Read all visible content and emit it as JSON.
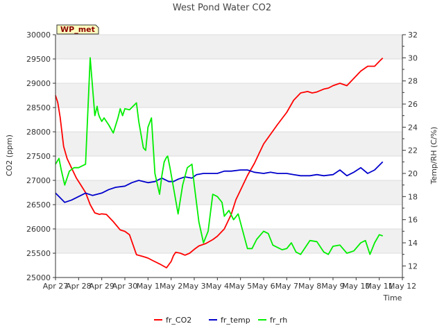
{
  "chart_data": {
    "type": "line",
    "title": "West Pond Water CO2",
    "tag": "WP_met",
    "xlabel": "Time",
    "ylabel": "CO2 (ppm)",
    "y2label": "Temp/RH (C/%)",
    "x_ticks": [
      "Apr 27",
      "Apr 28",
      "Apr 29",
      "Apr 30",
      "May 1",
      "May 2",
      "May 3",
      "May 4",
      "May 5",
      "May 6",
      "May 7",
      "May 8",
      "May 9",
      "May 10",
      "May 11",
      "May 12"
    ],
    "xlim": [
      0,
      15
    ],
    "ylim": [
      25000,
      30000
    ],
    "y_ticks": [
      "25000",
      "25500",
      "26000",
      "26500",
      "27000",
      "27500",
      "28000",
      "28500",
      "29000",
      "29500",
      "30000"
    ],
    "y2lim": [
      11,
      32
    ],
    "y2_ticks": [
      "12",
      "14",
      "16",
      "18",
      "20",
      "22",
      "24",
      "26",
      "28",
      "30",
      "32"
    ],
    "series": [
      {
        "name": "fr_CO2",
        "color": "#ff0000",
        "axis": "left",
        "x": [
          0.0,
          0.1,
          0.2,
          0.35,
          0.5,
          0.7,
          0.9,
          1.1,
          1.3,
          1.5,
          1.7,
          1.9,
          2.0,
          2.2,
          2.5,
          2.8,
          3.0,
          3.2,
          3.5,
          3.8,
          4.0,
          4.2,
          4.5,
          4.8,
          5.0,
          5.1,
          5.2,
          5.4,
          5.6,
          5.8,
          6.0,
          6.2,
          6.5,
          6.8,
          7.0,
          7.3,
          7.6,
          7.8,
          8.0,
          8.3,
          8.6,
          8.8,
          9.0,
          9.3,
          9.6,
          10.0,
          10.3,
          10.6,
          10.9,
          11.1,
          11.3,
          11.6,
          11.8,
          12.0,
          12.3,
          12.6,
          12.9,
          13.2,
          13.5,
          13.8,
          14.0,
          14.15
        ],
        "values": [
          28750,
          28600,
          28300,
          27700,
          27450,
          27250,
          27050,
          26900,
          26750,
          26500,
          26330,
          26300,
          26310,
          26300,
          26150,
          25980,
          25950,
          25880,
          25470,
          25430,
          25400,
          25350,
          25280,
          25200,
          25330,
          25450,
          25520,
          25500,
          25460,
          25500,
          25580,
          25650,
          25700,
          25780,
          25850,
          26000,
          26300,
          26600,
          26800,
          27100,
          27350,
          27550,
          27750,
          27950,
          28150,
          28400,
          28650,
          28800,
          28830,
          28800,
          28820,
          28880,
          28900,
          28950,
          29000,
          28950,
          29100,
          29250,
          29350,
          29350,
          29450,
          29520
        ]
      },
      {
        "name": "fr_temp",
        "color": "#0000cc",
        "axis": "right",
        "x": [
          0.0,
          0.2,
          0.4,
          0.7,
          1.0,
          1.3,
          1.6,
          2.0,
          2.3,
          2.6,
          3.0,
          3.3,
          3.6,
          4.0,
          4.3,
          4.6,
          4.9,
          5.1,
          5.3,
          5.6,
          5.9,
          6.1,
          6.4,
          6.7,
          7.0,
          7.3,
          7.6,
          8.0,
          8.3,
          8.6,
          9.0,
          9.3,
          9.6,
          10.0,
          10.3,
          10.6,
          11.0,
          11.3,
          11.6,
          12.0,
          12.3,
          12.6,
          12.9,
          13.2,
          13.5,
          13.8,
          14.0,
          14.15
        ],
        "values": [
          18.3,
          17.9,
          17.5,
          17.7,
          18.0,
          18.3,
          18.1,
          18.3,
          18.6,
          18.8,
          18.9,
          19.2,
          19.4,
          19.2,
          19.3,
          19.6,
          19.3,
          19.3,
          19.5,
          19.7,
          19.6,
          19.9,
          20.0,
          20.0,
          20.0,
          20.2,
          20.2,
          20.3,
          20.3,
          20.1,
          20.0,
          20.1,
          20.0,
          20.0,
          19.9,
          19.8,
          19.8,
          19.9,
          19.8,
          19.9,
          20.3,
          19.8,
          20.1,
          20.5,
          20.0,
          20.3,
          20.7,
          21.0
        ]
      },
      {
        "name": "fr_rh",
        "color": "#00ee00",
        "axis": "right",
        "x": [
          0.0,
          0.15,
          0.25,
          0.4,
          0.6,
          0.8,
          1.0,
          1.3,
          1.5,
          1.7,
          1.8,
          1.85,
          1.9,
          2.0,
          2.1,
          2.3,
          2.5,
          2.7,
          2.8,
          2.9,
          3.0,
          3.2,
          3.5,
          3.6,
          3.8,
          3.9,
          4.0,
          4.15,
          4.3,
          4.5,
          4.6,
          4.7,
          4.8,
          4.85,
          4.95,
          5.1,
          5.3,
          5.5,
          5.7,
          5.9,
          6.0,
          6.2,
          6.4,
          6.6,
          6.8,
          7.0,
          7.2,
          7.3,
          7.5,
          7.7,
          7.9,
          8.1,
          8.3,
          8.5,
          8.7,
          9.0,
          9.2,
          9.4,
          9.6,
          9.8,
          10.0,
          10.2,
          10.4,
          10.6,
          10.8,
          11.0,
          11.3,
          11.6,
          11.8,
          12.0,
          12.3,
          12.6,
          12.9,
          13.2,
          13.4,
          13.6,
          13.8,
          14.0,
          14.15
        ],
        "values": [
          20.8,
          21.3,
          20.3,
          19.0,
          20.2,
          20.5,
          20.5,
          20.8,
          30.0,
          25.0,
          25.8,
          25.2,
          24.9,
          24.5,
          24.8,
          24.2,
          23.5,
          24.8,
          25.6,
          25.0,
          25.6,
          25.5,
          26.1,
          24.5,
          22.2,
          22.0,
          24.0,
          24.8,
          20.0,
          18.2,
          19.8,
          21.0,
          21.4,
          21.5,
          20.5,
          18.8,
          16.5,
          19.0,
          20.5,
          20.8,
          19.0,
          15.8,
          14.0,
          15.0,
          18.2,
          18.0,
          17.5,
          16.3,
          16.8,
          16.0,
          16.5,
          15.0,
          13.5,
          13.5,
          14.3,
          15.0,
          14.8,
          13.8,
          13.6,
          13.4,
          13.5,
          14.0,
          13.2,
          13.0,
          13.6,
          14.2,
          14.1,
          13.2,
          13.0,
          13.7,
          13.8,
          13.1,
          13.3,
          14.0,
          14.2,
          13.0,
          14.0,
          14.7,
          14.6
        ]
      }
    ]
  }
}
